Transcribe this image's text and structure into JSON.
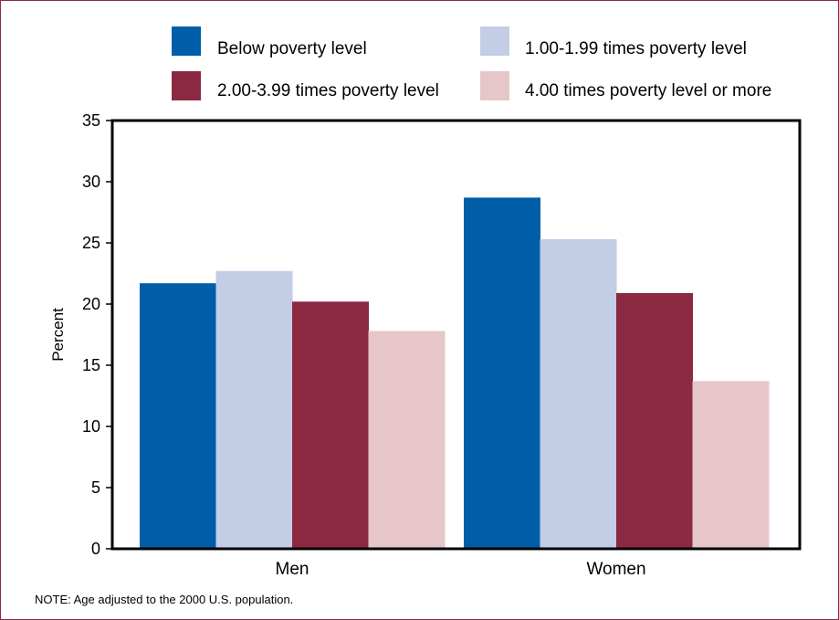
{
  "chart_data": {
    "type": "bar",
    "categories": [
      "Men",
      "Women"
    ],
    "series": [
      {
        "name": "Below poverty level",
        "values": [
          21.7,
          28.7
        ]
      },
      {
        "name": "1.00‑1.99 times poverty level",
        "values": [
          22.7,
          25.3
        ]
      },
      {
        "name": "2.00‑3.99 times poverty level",
        "values": [
          20.2,
          20.9
        ]
      },
      {
        "name": "4.00 times poverty level or more",
        "values": [
          17.8,
          13.7
        ]
      }
    ],
    "colors": [
      "#005ea8",
      "#c3cde6",
      "#8b2942",
      "#e6c6c8"
    ],
    "ylabel": "Percent",
    "xlabel": "",
    "ylim": [
      0,
      35
    ],
    "yticks": [
      0,
      5,
      10,
      15,
      20,
      25,
      30,
      35
    ],
    "grid": false,
    "legend_position": "top"
  },
  "note": "NOTE: Age adjusted to the 2000 U.S. population."
}
